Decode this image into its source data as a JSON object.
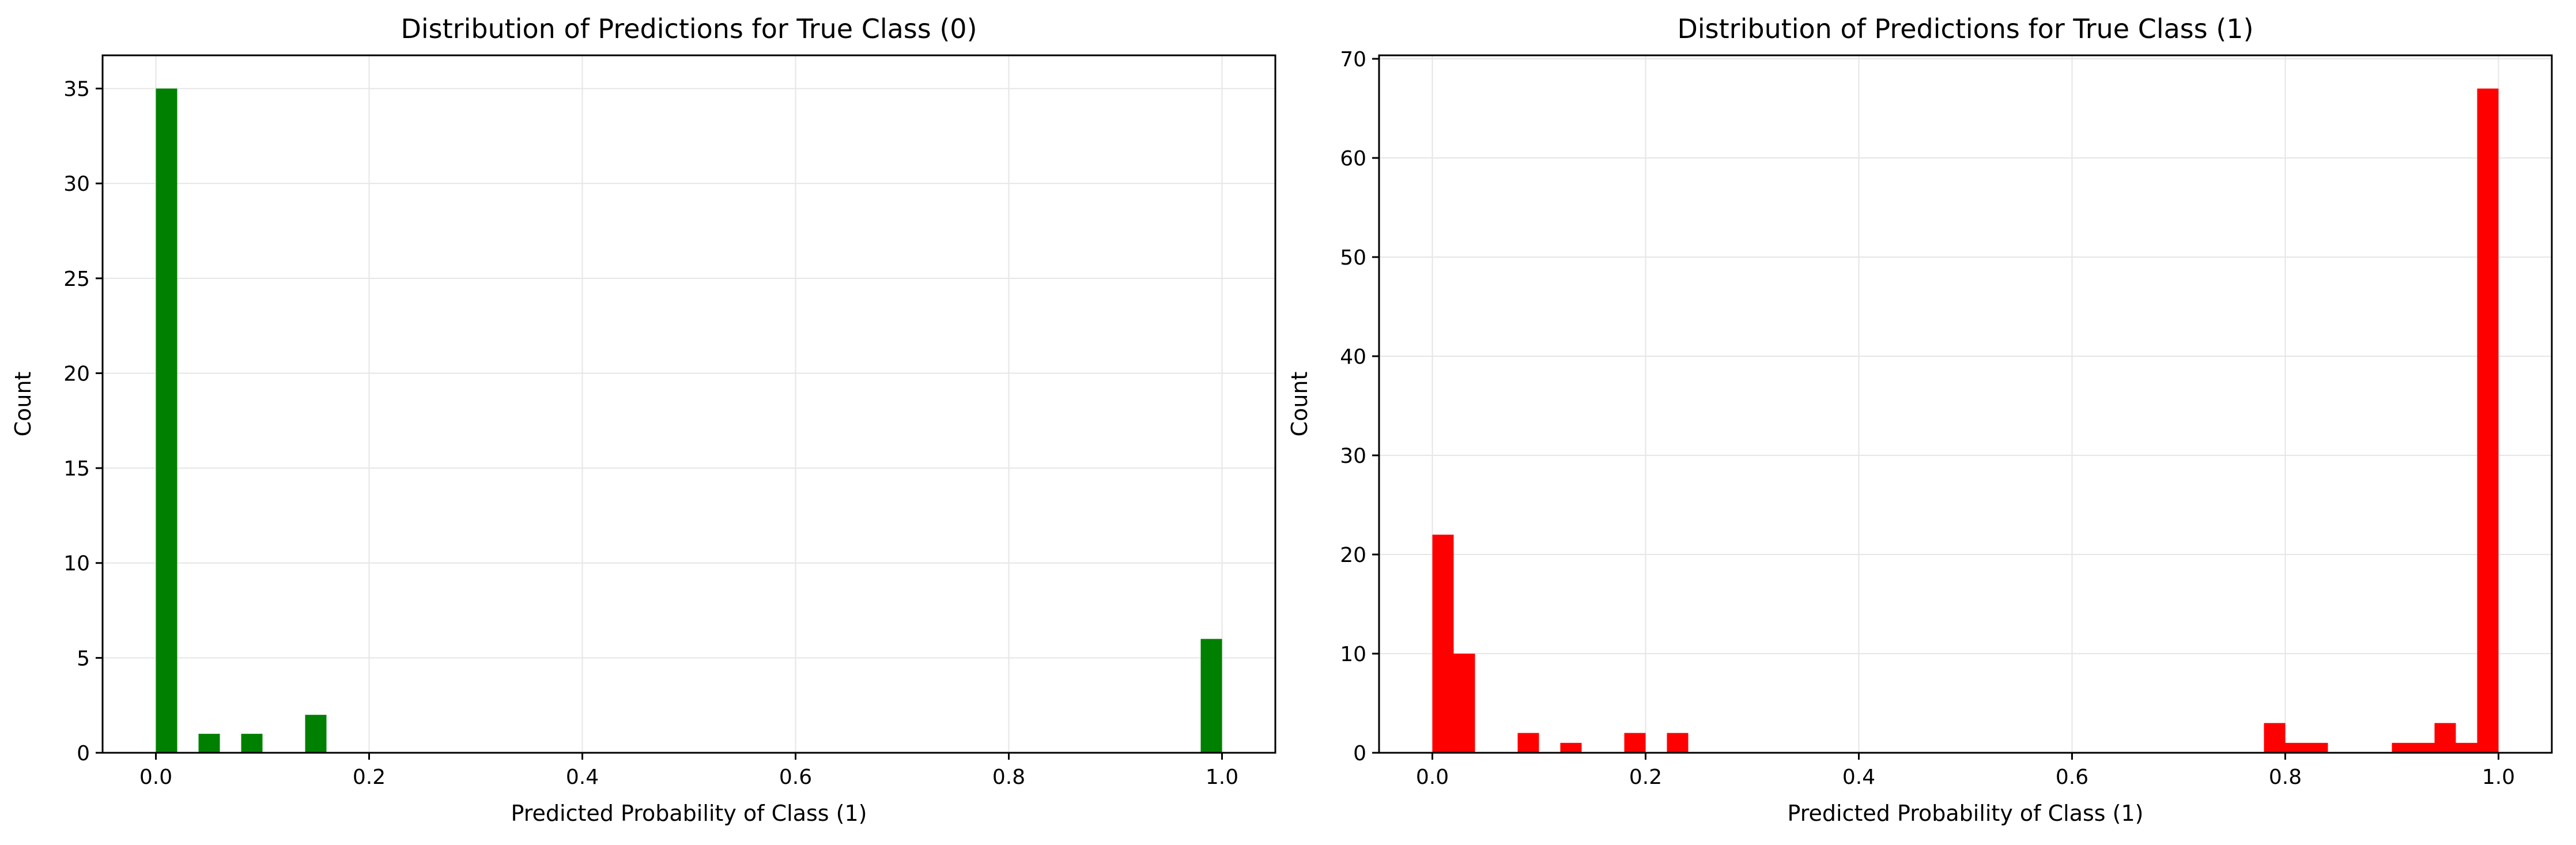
{
  "colors": {
    "left_bars": "#008000",
    "right_bars": "#ff0000",
    "grid": "#e6e6e6",
    "axes": "#000000"
  },
  "chart_data": [
    {
      "type": "bar",
      "title": "Distribution of Predictions for True Class (0)",
      "xlabel": "Predicted Probability of Class (1)",
      "ylabel": "Count",
      "xlim": [
        -0.05,
        1.05
      ],
      "ylim": [
        0,
        36.75
      ],
      "xticks": [
        "0.0",
        "0.2",
        "0.4",
        "0.6",
        "0.8",
        "1.0"
      ],
      "yticks": [
        "0",
        "5",
        "10",
        "15",
        "20",
        "25",
        "30",
        "35"
      ],
      "grid": true,
      "bin_edges": [
        0.0,
        0.02
      ],
      "bin_width": 0.02,
      "bins": [
        {
          "x": 0.0,
          "count": 35
        },
        {
          "x": 0.04,
          "count": 1
        },
        {
          "x": 0.08,
          "count": 1
        },
        {
          "x": 0.14,
          "count": 2
        },
        {
          "x": 0.98,
          "count": 6
        }
      ]
    },
    {
      "type": "bar",
      "title": "Distribution of Predictions for True Class (1)",
      "xlabel": "Predicted Probability of Class (1)",
      "ylabel": "Count",
      "xlim": [
        -0.05,
        1.05
      ],
      "ylim": [
        0,
        70.35
      ],
      "xticks": [
        "0.0",
        "0.2",
        "0.4",
        "0.6",
        "0.8",
        "1.0"
      ],
      "yticks": [
        "0",
        "10",
        "20",
        "30",
        "40",
        "50",
        "60",
        "70"
      ],
      "grid": true,
      "bin_width": 0.02,
      "bins": [
        {
          "x": 0.0,
          "count": 22
        },
        {
          "x": 0.02,
          "count": 10
        },
        {
          "x": 0.08,
          "count": 2
        },
        {
          "x": 0.12,
          "count": 1
        },
        {
          "x": 0.18,
          "count": 2
        },
        {
          "x": 0.22,
          "count": 2
        },
        {
          "x": 0.78,
          "count": 3
        },
        {
          "x": 0.8,
          "count": 1
        },
        {
          "x": 0.82,
          "count": 1
        },
        {
          "x": 0.9,
          "count": 1
        },
        {
          "x": 0.92,
          "count": 1
        },
        {
          "x": 0.94,
          "count": 3
        },
        {
          "x": 0.96,
          "count": 1
        },
        {
          "x": 0.98,
          "count": 67
        }
      ]
    }
  ]
}
